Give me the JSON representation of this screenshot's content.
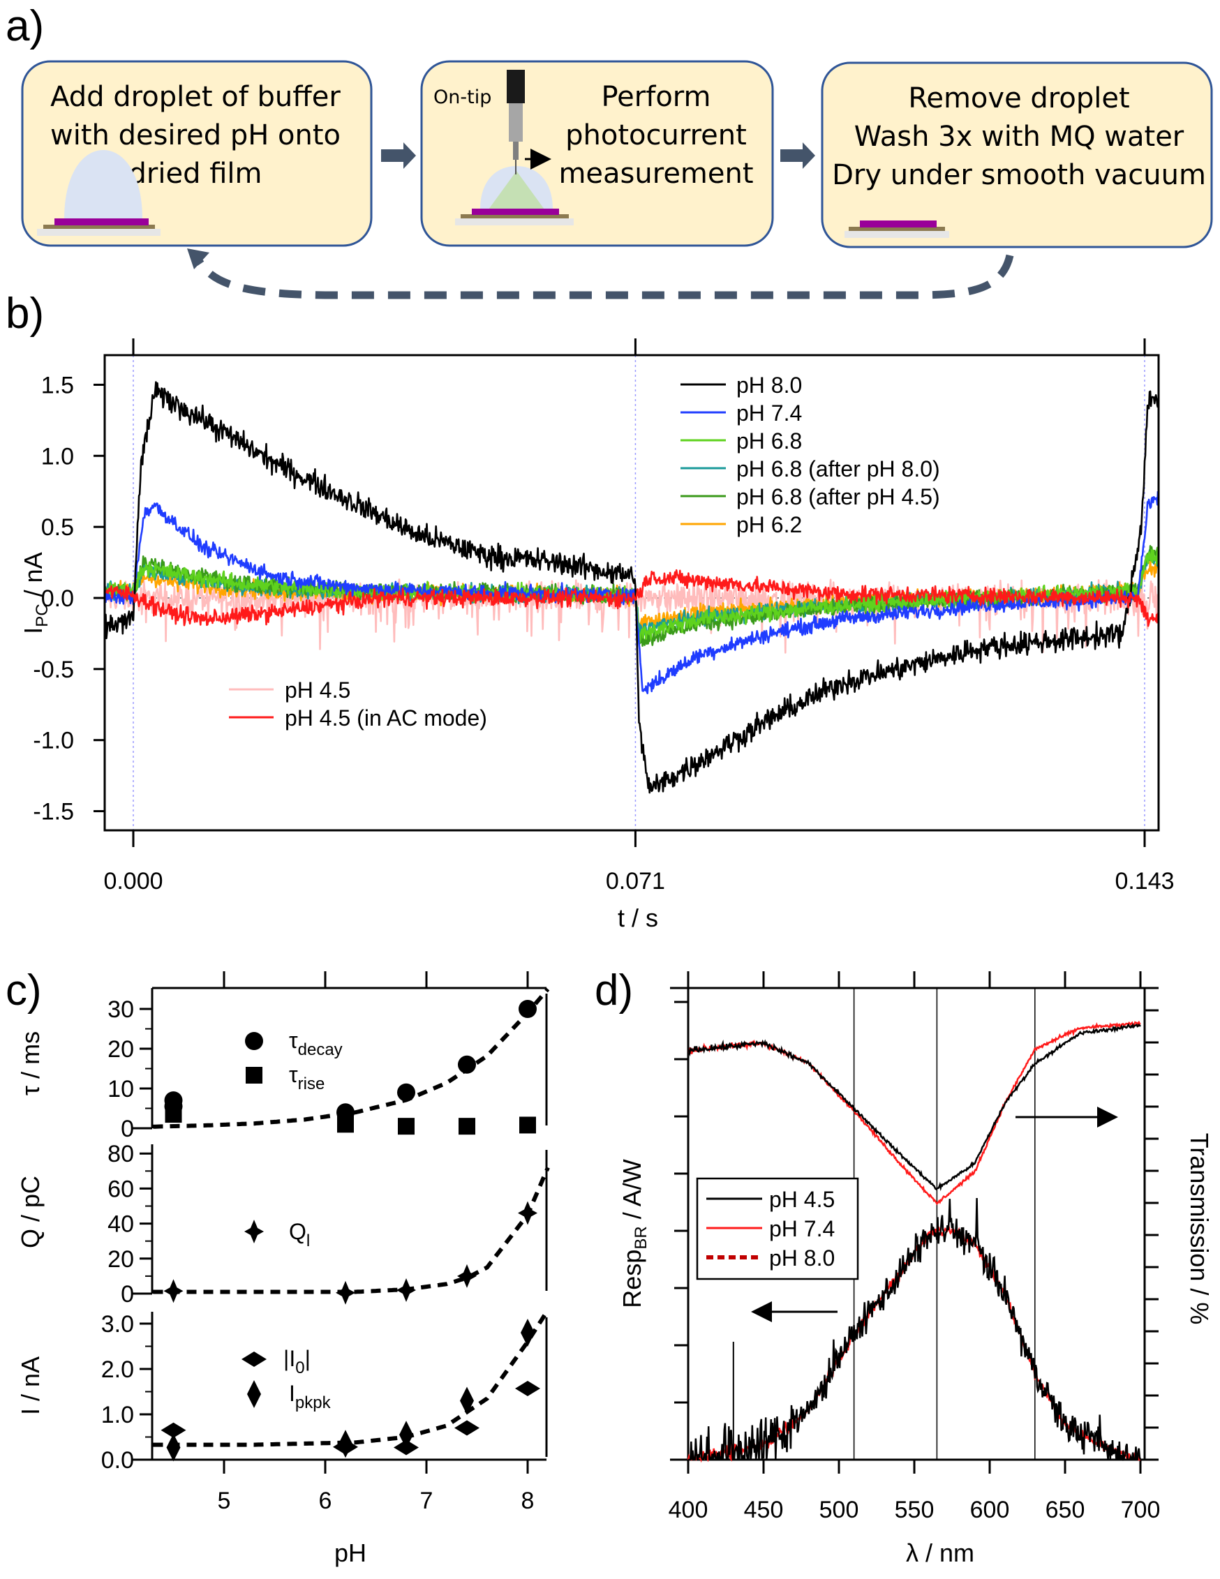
{
  "panel_a": {
    "label": "a)",
    "steps": [
      {
        "lines": [
          "Add droplet of buffer",
          "with desired pH onto",
          "dried film"
        ]
      },
      {
        "lines": [
          "Perform",
          "photocurrent",
          "measurement"
        ],
        "tag": "On-tip"
      },
      {
        "lines": [
          "Remove droplet",
          "Wash 3x with MQ water",
          "Dry under smooth vacuum"
        ]
      }
    ],
    "colors": {
      "box_fill": "#fff2cc",
      "box_border": "#2f5597",
      "arrow": "#44546a",
      "film": "#990099"
    }
  },
  "chart_data": [
    {
      "panel": "b)",
      "type": "line",
      "xlabel": "t / s",
      "ylabel": "I",
      "ylabel_sub": "PC",
      "ylabel_unit": " / nA",
      "xticks": [
        "0.000",
        "0.071",
        "0.143"
      ],
      "xtick_values": [
        0,
        0.071,
        0.143
      ],
      "yticks": [
        "1.5",
        "1.0",
        "0.5",
        "0.0",
        "-0.5",
        "-1.0",
        "-1.5"
      ],
      "ytick_values": [
        1.5,
        1.0,
        0.5,
        0.0,
        -0.5,
        -1.0,
        -1.5
      ],
      "xlim": [
        -0.004,
        0.145
      ],
      "ylim": [
        -1.65,
        1.72
      ],
      "legend_placement": "top-right / bottom-left",
      "series": [
        {
          "name": "pH 4.5",
          "color": "#ffbcbc",
          "points": [
            [
              -0.004,
              0.0
            ],
            [
              0.143,
              0.0
            ],
            [
              0.145,
              0.0
            ]
          ]
        },
        {
          "name": "pH 6.2",
          "color": "#ffa500",
          "points": [
            [
              -0.004,
              0.05
            ],
            [
              0,
              0.05
            ],
            [
              0.0015,
              0.15
            ],
            [
              0.005,
              0.12
            ],
            [
              0.015,
              0.06
            ],
            [
              0.03,
              0.03
            ],
            [
              0.071,
              0.02
            ],
            [
              0.0715,
              -0.18
            ],
            [
              0.08,
              -0.1
            ],
            [
              0.1,
              -0.03
            ],
            [
              0.142,
              0.05
            ],
            [
              0.1435,
              0.2
            ],
            [
              0.145,
              0.2
            ]
          ]
        },
        {
          "name": "pH 6.8 (after pH 8.0)",
          "color": "#1a9a9a",
          "points": [
            [
              -0.004,
              0.05
            ],
            [
              0,
              0.05
            ],
            [
              0.0015,
              0.2
            ],
            [
              0.005,
              0.16
            ],
            [
              0.015,
              0.08
            ],
            [
              0.03,
              0.04
            ],
            [
              0.071,
              0.02
            ],
            [
              0.0715,
              -0.22
            ],
            [
              0.08,
              -0.14
            ],
            [
              0.1,
              -0.05
            ],
            [
              0.142,
              0.05
            ],
            [
              0.1435,
              0.28
            ],
            [
              0.145,
              0.28
            ]
          ]
        },
        {
          "name": "pH 6.8 (after pH 4.5)",
          "color": "#3a9a1a",
          "points": [
            [
              -0.004,
              0.05
            ],
            [
              0,
              0.05
            ],
            [
              0.0015,
              0.25
            ],
            [
              0.005,
              0.2
            ],
            [
              0.015,
              0.1
            ],
            [
              0.03,
              0.06
            ],
            [
              0.071,
              0.02
            ],
            [
              0.0715,
              -0.3
            ],
            [
              0.08,
              -0.18
            ],
            [
              0.1,
              -0.06
            ],
            [
              0.142,
              0.05
            ],
            [
              0.1435,
              0.32
            ],
            [
              0.145,
              0.32
            ]
          ]
        },
        {
          "name": "pH 6.8",
          "color": "#5fd21e",
          "points": [
            [
              -0.004,
              0.05
            ],
            [
              0,
              0.05
            ],
            [
              0.0015,
              0.22
            ],
            [
              0.005,
              0.18
            ],
            [
              0.015,
              0.1
            ],
            [
              0.03,
              0.05
            ],
            [
              0.071,
              0.02
            ],
            [
              0.0715,
              -0.25
            ],
            [
              0.08,
              -0.15
            ],
            [
              0.1,
              -0.05
            ],
            [
              0.142,
              0.05
            ],
            [
              0.1435,
              0.3
            ],
            [
              0.145,
              0.3
            ]
          ]
        },
        {
          "name": "pH 7.4",
          "color": "#1f3cff",
          "points": [
            [
              -0.004,
              0.0
            ],
            [
              0,
              0.0
            ],
            [
              0.0015,
              0.6
            ],
            [
              0.003,
              0.65
            ],
            [
              0.01,
              0.35
            ],
            [
              0.02,
              0.15
            ],
            [
              0.03,
              0.08
            ],
            [
              0.04,
              0.05
            ],
            [
              0.071,
              0.02
            ],
            [
              0.072,
              -0.65
            ],
            [
              0.08,
              -0.4
            ],
            [
              0.09,
              -0.25
            ],
            [
              0.1,
              -0.15
            ],
            [
              0.12,
              -0.05
            ],
            [
              0.142,
              0.0
            ],
            [
              0.1435,
              0.65
            ],
            [
              0.145,
              0.7
            ]
          ]
        },
        {
          "name": "pH 8.0",
          "color": "#000000",
          "points": [
            [
              -0.004,
              -0.2
            ],
            [
              0,
              -0.15
            ],
            [
              0.001,
              0.9
            ],
            [
              0.003,
              1.45
            ],
            [
              0.01,
              1.25
            ],
            [
              0.02,
              0.95
            ],
            [
              0.03,
              0.7
            ],
            [
              0.04,
              0.45
            ],
            [
              0.05,
              0.3
            ],
            [
              0.06,
              0.25
            ],
            [
              0.071,
              0.15
            ],
            [
              0.0715,
              -0.9
            ],
            [
              0.073,
              -1.35
            ],
            [
              0.08,
              -1.15
            ],
            [
              0.09,
              -0.85
            ],
            [
              0.1,
              -0.6
            ],
            [
              0.12,
              -0.35
            ],
            [
              0.14,
              -0.25
            ],
            [
              0.1425,
              0.5
            ],
            [
              0.1435,
              1.4
            ],
            [
              0.145,
              1.4
            ]
          ]
        },
        {
          "name": "pH 4.5 (in AC mode)",
          "color": "#ff1a1a",
          "points": [
            [
              -0.004,
              0.05
            ],
            [
              0,
              0.02
            ],
            [
              0.005,
              -0.1
            ],
            [
              0.01,
              -0.15
            ],
            [
              0.02,
              -0.1
            ],
            [
              0.035,
              0.0
            ],
            [
              0.071,
              0.0
            ],
            [
              0.073,
              0.15
            ],
            [
              0.08,
              0.12
            ],
            [
              0.1,
              0.03
            ],
            [
              0.142,
              0.0
            ],
            [
              0.1435,
              -0.15
            ],
            [
              0.145,
              -0.15
            ]
          ]
        }
      ],
      "legend_top": [
        "pH 8.0",
        "pH 7.4",
        "pH 6.8",
        "pH 6.8 (after pH 8.0)",
        "pH 6.8 (after pH 4.5)",
        "pH 6.2"
      ],
      "legend_bottom": [
        "pH 4.5",
        "pH 4.5 (in AC mode)"
      ]
    },
    {
      "panel": "c)",
      "type": "scatter",
      "xlabel": "pH",
      "xticks": [
        "5",
        "6",
        "7",
        "8"
      ],
      "xtick_values": [
        5,
        6,
        7,
        8
      ],
      "xlim": [
        4.29,
        8.19
      ],
      "subplots": [
        {
          "ylabel": "τ / ms",
          "ylim": [
            0,
            35
          ],
          "yticks": [
            "0",
            "10",
            "20",
            "30"
          ],
          "ytick_values": [
            0,
            10,
            20,
            30
          ],
          "series": [
            {
              "name": "τ",
              "name_sub": "decay",
              "marker": "circle",
              "x": [
                4.5,
                4.5,
                6.2,
                6.8,
                7.4,
                8.0
              ],
              "y": [
                7,
                5.5,
                4,
                9,
                16,
                30
              ]
            },
            {
              "name": "τ",
              "name_sub": "rise",
              "marker": "square",
              "x": [
                4.5,
                4.5,
                6.2,
                6.8,
                7.4,
                8.0
              ],
              "y": [
                4.5,
                3.5,
                1,
                0.5,
                0.5,
                0.8
              ]
            }
          ],
          "fit": {
            "x": [
              4.3,
              4.8,
              5.3,
              5.8,
              6.3,
              6.8,
              7.2,
              7.6,
              8.0,
              8.2
            ],
            "y": [
              0.4,
              0.7,
              1.2,
              2.2,
              4.0,
              7.1,
              11.4,
              18.2,
              29,
              35
            ]
          }
        },
        {
          "ylabel": "Q / pC",
          "ylim": [
            0,
            85
          ],
          "yticks": [
            "0",
            "20",
            "40",
            "60",
            "80"
          ],
          "ytick_values": [
            0,
            20,
            40,
            60,
            80
          ],
          "series": [
            {
              "name": "Q",
              "name_sub": "l",
              "marker": "star",
              "x": [
                4.5,
                6.2,
                6.8,
                7.4,
                8.0
              ],
              "y": [
                1.5,
                0.5,
                2,
                10,
                46
              ]
            }
          ],
          "fit": {
            "x": [
              4.3,
              5.3,
              6.3,
              6.8,
              7.2,
              7.4,
              7.6,
              8.0,
              8.2
            ],
            "y": [
              1,
              1,
              1,
              2.4,
              5.5,
              9,
              15,
              45,
              72
            ]
          }
        },
        {
          "ylabel": "I / nA",
          "ylim": [
            0,
            3.3
          ],
          "yticks": [
            "0.0",
            "1.0",
            "2.0",
            "3.0"
          ],
          "ytick_values": [
            0,
            1,
            2,
            3
          ],
          "series": [
            {
              "name": "|I",
              "name_sub": "0",
              "name_suffix": "|",
              "marker": "diamond-wide",
              "x": [
                4.5,
                6.2,
                6.8,
                7.4,
                8.0
              ],
              "y": [
                0.65,
                0.28,
                0.27,
                0.7,
                1.57
              ]
            },
            {
              "name": "I",
              "name_sub": "pkpk",
              "marker": "diamond-tall",
              "x": [
                4.5,
                6.2,
                6.8,
                7.4,
                8.0
              ],
              "y": [
                0.27,
                0.35,
                0.55,
                1.3,
                2.8
              ]
            }
          ],
          "fit": {
            "x": [
              4.3,
              5.3,
              6.3,
              6.8,
              7.2,
              7.6,
              8.0,
              8.2
            ],
            "y": [
              0.33,
              0.33,
              0.38,
              0.5,
              0.75,
              1.35,
              2.6,
              3.3
            ]
          }
        }
      ]
    },
    {
      "panel": "d)",
      "type": "line",
      "xlabel": "λ / nm",
      "ylabel_left": "Resp",
      "ylabel_left_sub": "BR",
      "ylabel_left_unit": " / A/W",
      "ylabel_right": "Transmission / %",
      "xticks": [
        "400",
        "450",
        "500",
        "550",
        "600",
        "650",
        "700"
      ],
      "xtick_values": [
        400,
        450,
        500,
        550,
        600,
        650,
        700
      ],
      "xlim": [
        400,
        700
      ],
      "ylim_left": [
        0,
        1
      ],
      "ylim_right": [
        0,
        1
      ],
      "vertical_lines": [
        510,
        565,
        630
      ],
      "transmission": [
        {
          "name": "pH 4.5",
          "color": "#000000",
          "x": [
            400,
            450,
            480,
            510,
            540,
            565,
            590,
            610,
            630,
            660,
            700
          ],
          "y": [
            0.868,
            0.883,
            0.84,
            0.745,
            0.649,
            0.574,
            0.628,
            0.755,
            0.84,
            0.904,
            0.921
          ]
        },
        {
          "name": "pH 7.4",
          "color": "#ff1a1a",
          "x": [
            400,
            450,
            480,
            510,
            540,
            565,
            590,
            610,
            630,
            660,
            700
          ],
          "y": [
            0.868,
            0.883,
            0.84,
            0.74,
            0.63,
            0.543,
            0.61,
            0.755,
            0.87,
            0.915,
            0.925
          ]
        }
      ],
      "responsivity": [
        {
          "name": "pH 4.5",
          "color": "#000000",
          "x": [
            400,
            450,
            480,
            510,
            540,
            560,
            575,
            590,
            610,
            630,
            650,
            680,
            700
          ],
          "y": [
            0,
            0.03,
            0.106,
            0.266,
            0.394,
            0.479,
            0.489,
            0.457,
            0.351,
            0.181,
            0.074,
            0.021,
            0
          ]
        },
        {
          "name": "pH 7.4",
          "color": "#ff1a1a",
          "x": [
            400,
            450,
            480,
            510,
            540,
            560,
            575,
            590,
            610,
            630,
            650,
            680,
            700
          ],
          "y": [
            0,
            0.03,
            0.106,
            0.266,
            0.394,
            0.479,
            0.489,
            0.457,
            0.351,
            0.181,
            0.074,
            0.021,
            0
          ]
        },
        {
          "name": "pH 8.0",
          "color": "#c00000",
          "dashed": true,
          "x": [
            400,
            450,
            480,
            510,
            540,
            560,
            575,
            590,
            610,
            630,
            650,
            680,
            700
          ],
          "y": [
            0,
            0.03,
            0.106,
            0.266,
            0.394,
            0.479,
            0.489,
            0.457,
            0.351,
            0.181,
            0.074,
            0.021,
            0
          ]
        }
      ],
      "legend": [
        "pH 4.5",
        "pH 7.4",
        "pH 8.0"
      ],
      "legend_placement": "center-left"
    }
  ]
}
